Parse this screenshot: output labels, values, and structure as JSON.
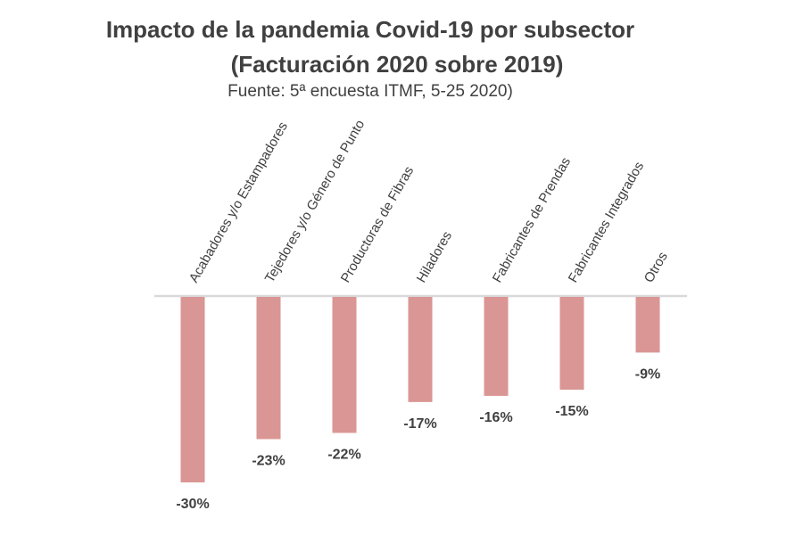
{
  "chart_data": {
    "type": "bar",
    "title": "Impacto de la pandemia Covid-19 por subsector",
    "subtitle": "(Facturación 2020 sobre 2019)",
    "source": "Fuente: 5ª encuesta ITMF, 5-25 2020)",
    "categories": [
      "Acabadores y/o Estampadores",
      "Tejedores y/o Género de Punto",
      "Productoras de Fibras",
      "Hiladores",
      "Fabricantes de Prendas",
      "Fabricantes Integrados",
      "Otros"
    ],
    "values": [
      -30,
      -23,
      -22,
      -17,
      -16,
      -15,
      -9
    ],
    "value_labels": [
      "-30%",
      "-23%",
      "-22%",
      "-17%",
      "-16%",
      "-15%",
      "-9%"
    ],
    "ylim": [
      -30,
      0
    ],
    "xlabel": "",
    "ylabel": "",
    "grid": false,
    "colors": {
      "bar": "#DA9694",
      "axis": "#D9D9D9",
      "text": "#404040"
    }
  }
}
